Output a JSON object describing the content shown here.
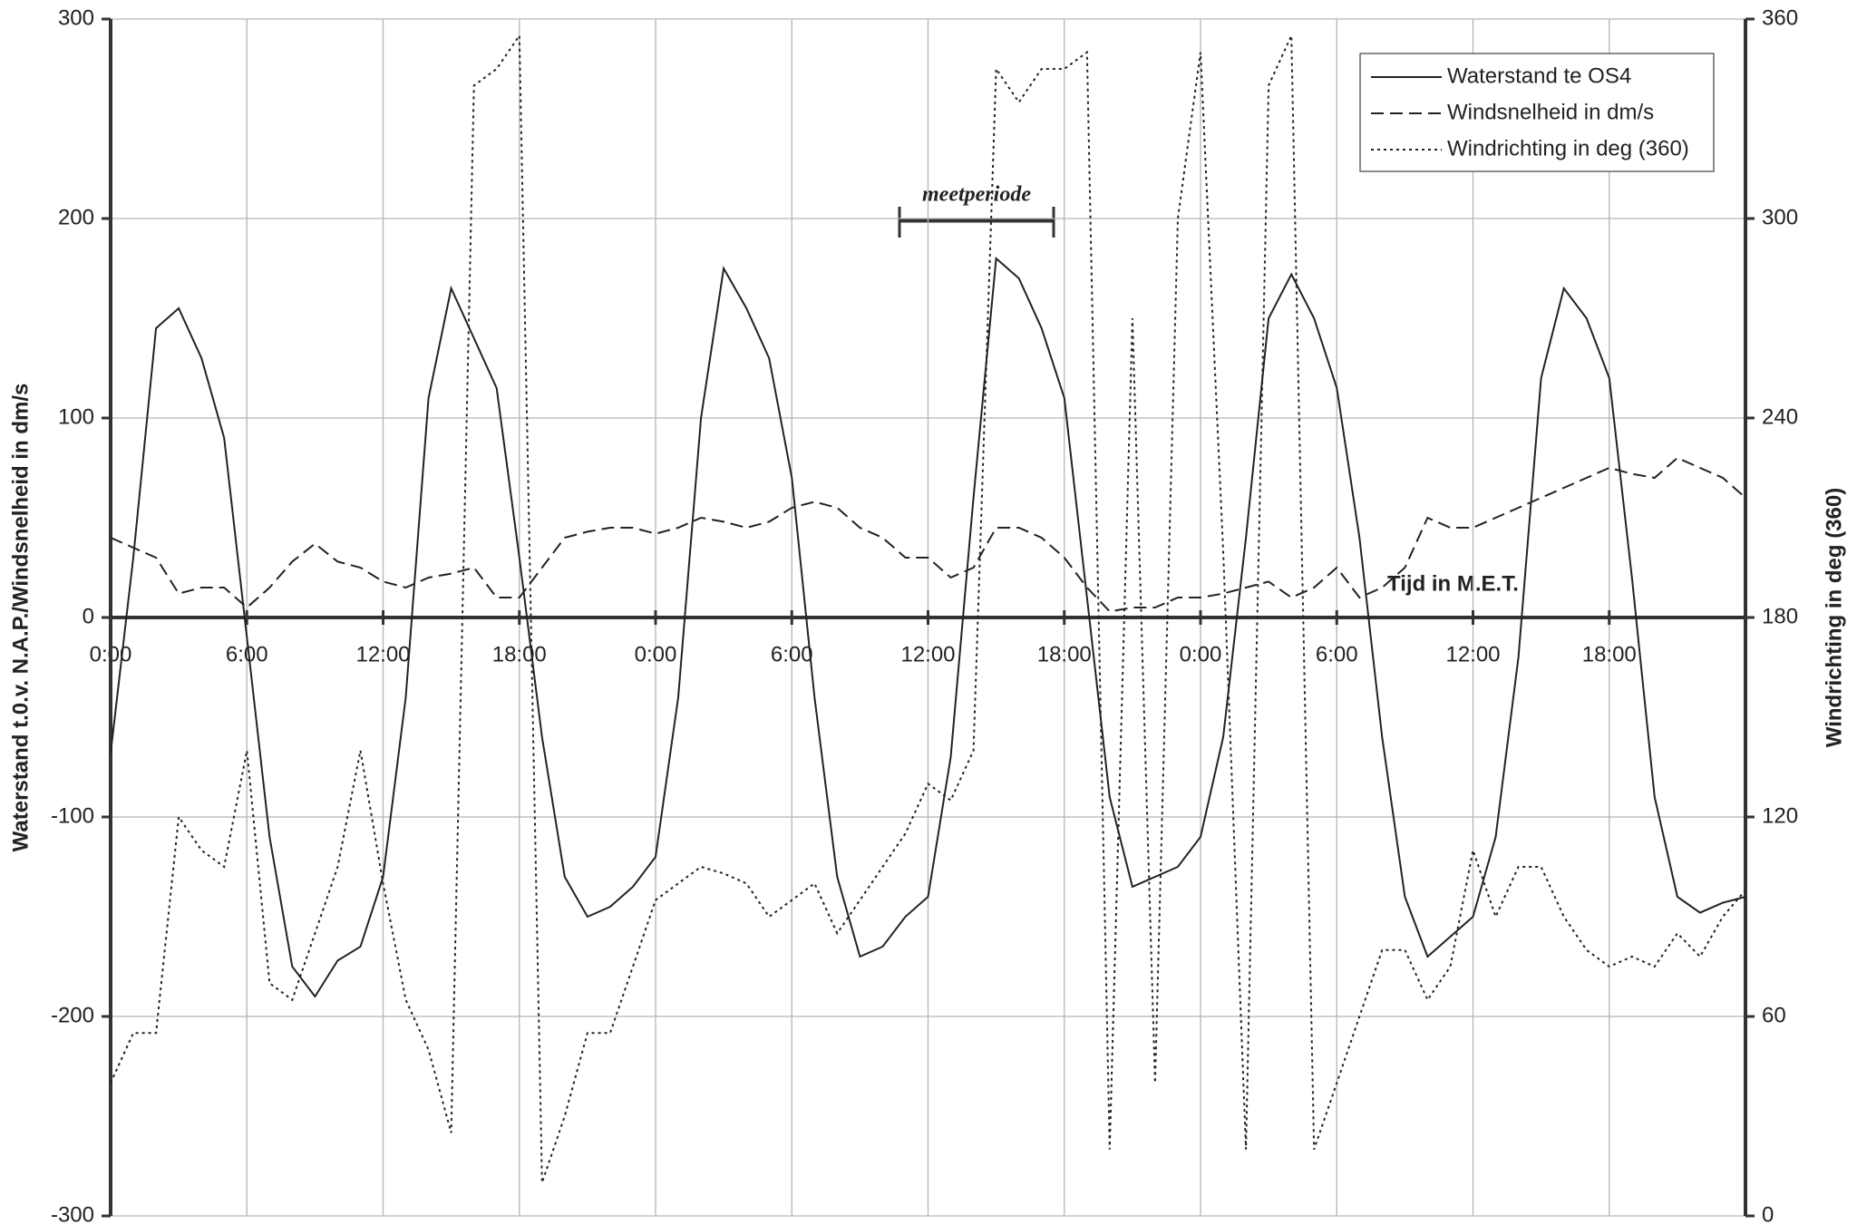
{
  "chart_data": {
    "type": "line",
    "y_label": "Waterstand t.0.v. N.A.P./Windsnelheid in dm/s",
    "y2_label": "Windrichting in deg (360)",
    "x_label": "Tijd in M.E.T.",
    "annotation": "meetperiode",
    "x": [
      0,
      1,
      2,
      3,
      4,
      5,
      6,
      7,
      8,
      9,
      10,
      11,
      12,
      13,
      14,
      15,
      16,
      17,
      18,
      19,
      20,
      21,
      22,
      23,
      24,
      25,
      26,
      27,
      28,
      29,
      30,
      31,
      32,
      33,
      34,
      35,
      36,
      37,
      38,
      39,
      40,
      41,
      42,
      43,
      44,
      45,
      46,
      47,
      48,
      49,
      50,
      51,
      52,
      53,
      54,
      55,
      56,
      57,
      58,
      59,
      60,
      61,
      62,
      63,
      64,
      65,
      66,
      67,
      68,
      69,
      70,
      71,
      72
    ],
    "series": [
      {
        "name": "Waterstand te OS4",
        "color": "#222222",
        "style": "solid",
        "values": [
          -68,
          30,
          145,
          155,
          130,
          90,
          -10,
          -110,
          -175,
          -190,
          -172,
          -165,
          -130,
          -40,
          110,
          165,
          140,
          115,
          30,
          -60,
          -130,
          -150,
          -145,
          -135,
          -120,
          -40,
          100,
          175,
          155,
          130,
          70,
          -40,
          -130,
          -170,
          -165,
          -150,
          -140,
          -70,
          60,
          180,
          170,
          145,
          110,
          10,
          -90,
          -135,
          -130,
          -125,
          -110,
          -60,
          40,
          150,
          172,
          150,
          115,
          40,
          -60,
          -140,
          -170,
          -160,
          -150,
          -110,
          -20,
          120,
          165,
          150,
          120,
          20,
          -90,
          -140,
          -148,
          -143,
          -140
        ]
      },
      {
        "name": "Windsnelheid in dm/s",
        "color": "#222222",
        "style": "dashed",
        "values": [
          40,
          35,
          30,
          12,
          15,
          15,
          5,
          15,
          28,
          37,
          28,
          25,
          18,
          15,
          20,
          22,
          25,
          10,
          10,
          25,
          40,
          43,
          45,
          45,
          42,
          45,
          50,
          48,
          45,
          48,
          55,
          58,
          55,
          45,
          40,
          30,
          30,
          20,
          25,
          45,
          45,
          40,
          30,
          15,
          3,
          5,
          5,
          10,
          10,
          12,
          15,
          18,
          10,
          15,
          25,
          10,
          15,
          25,
          50,
          45,
          45,
          50,
          55,
          60,
          65,
          70,
          75,
          72,
          70,
          80,
          75,
          70,
          60
        ]
      },
      {
        "name": "Windrichting in deg (360)",
        "color": "#222222",
        "style": "dotted",
        "axis": "y2",
        "values": [
          40,
          55,
          55,
          120,
          110,
          105,
          140,
          70,
          65,
          85,
          105,
          140,
          100,
          65,
          50,
          25,
          340,
          345,
          355,
          10,
          30,
          55,
          55,
          75,
          95,
          100,
          105,
          103,
          100,
          90,
          95,
          100,
          85,
          95,
          105,
          115,
          130,
          125,
          140,
          345,
          335,
          345,
          345,
          350,
          20,
          270,
          40,
          300,
          350,
          200,
          20,
          340,
          355,
          20,
          40,
          60,
          80,
          80,
          65,
          75,
          110,
          90,
          105,
          105,
          90,
          80,
          75,
          78,
          75,
          85,
          78,
          90,
          98
        ]
      }
    ],
    "xlim": [
      0,
      72
    ],
    "xticks": [
      {
        "value": 0,
        "label": "0:00"
      },
      {
        "value": 6,
        "label": "6:00"
      },
      {
        "value": 12,
        "label": "12:00"
      },
      {
        "value": 18,
        "label": "18:00"
      },
      {
        "value": 24,
        "label": "0:00"
      },
      {
        "value": 30,
        "label": "6:00"
      },
      {
        "value": 36,
        "label": "12:00"
      },
      {
        "value": 42,
        "label": "18:00"
      },
      {
        "value": 48,
        "label": "0:00"
      },
      {
        "value": 54,
        "label": "6:00"
      },
      {
        "value": 60,
        "label": "12:00"
      },
      {
        "value": 66,
        "label": "18:00"
      }
    ],
    "ylim": [
      -300,
      300
    ],
    "yticks": [
      -300,
      -200,
      -100,
      0,
      100,
      200,
      300
    ],
    "y2lim": [
      0,
      360
    ],
    "y2ticks": [
      0,
      60,
      120,
      180,
      240,
      300,
      360
    ],
    "grid": true,
    "legend": "upper right"
  }
}
